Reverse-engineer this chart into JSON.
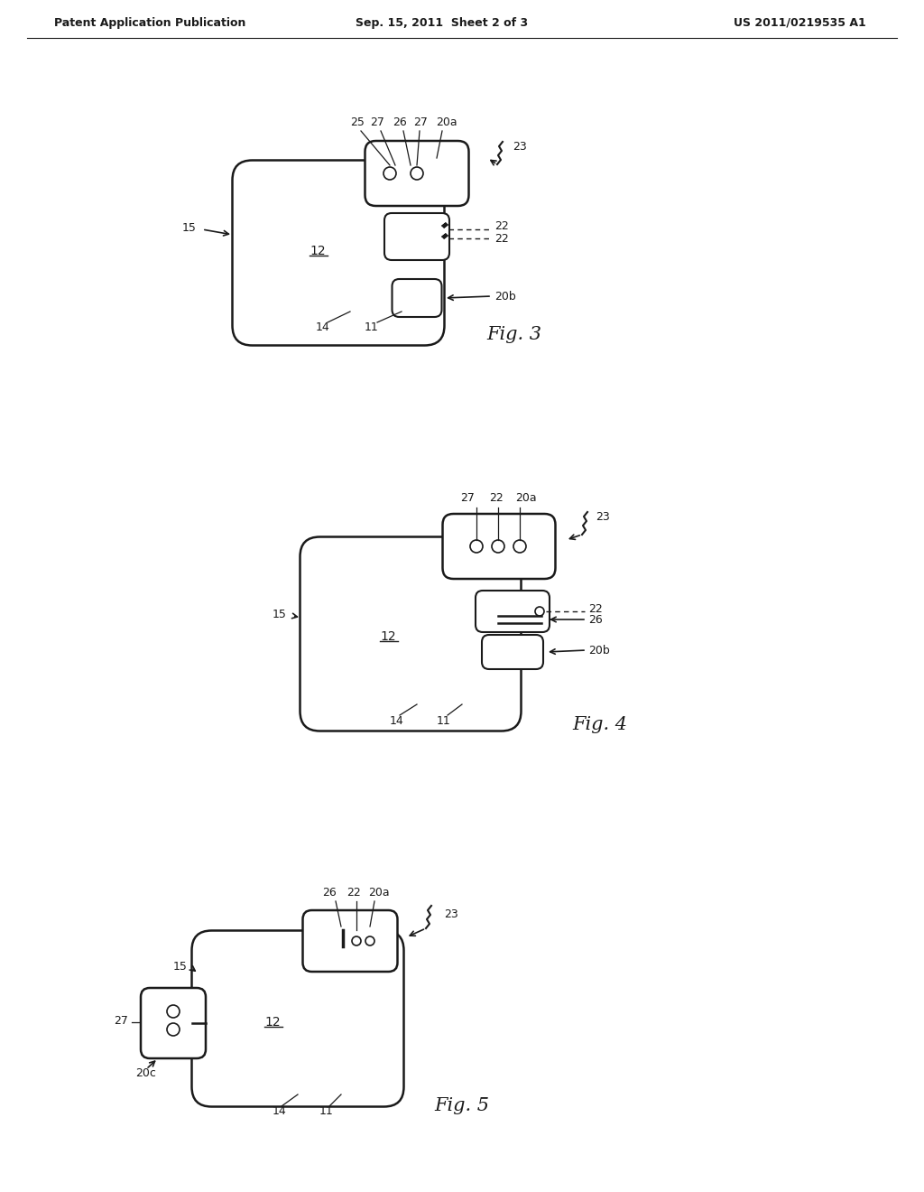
{
  "bg_color": "#ffffff",
  "line_color": "#1a1a1a",
  "text_color": "#1a1a1a",
  "header_left": "Patent Application Publication",
  "header_mid": "Sep. 15, 2011  Sheet 2 of 3",
  "header_right": "US 2011/0219535 A1",
  "fig3_label": "Fig. 3",
  "fig4_label": "Fig. 4",
  "fig5_label": "Fig. 5"
}
